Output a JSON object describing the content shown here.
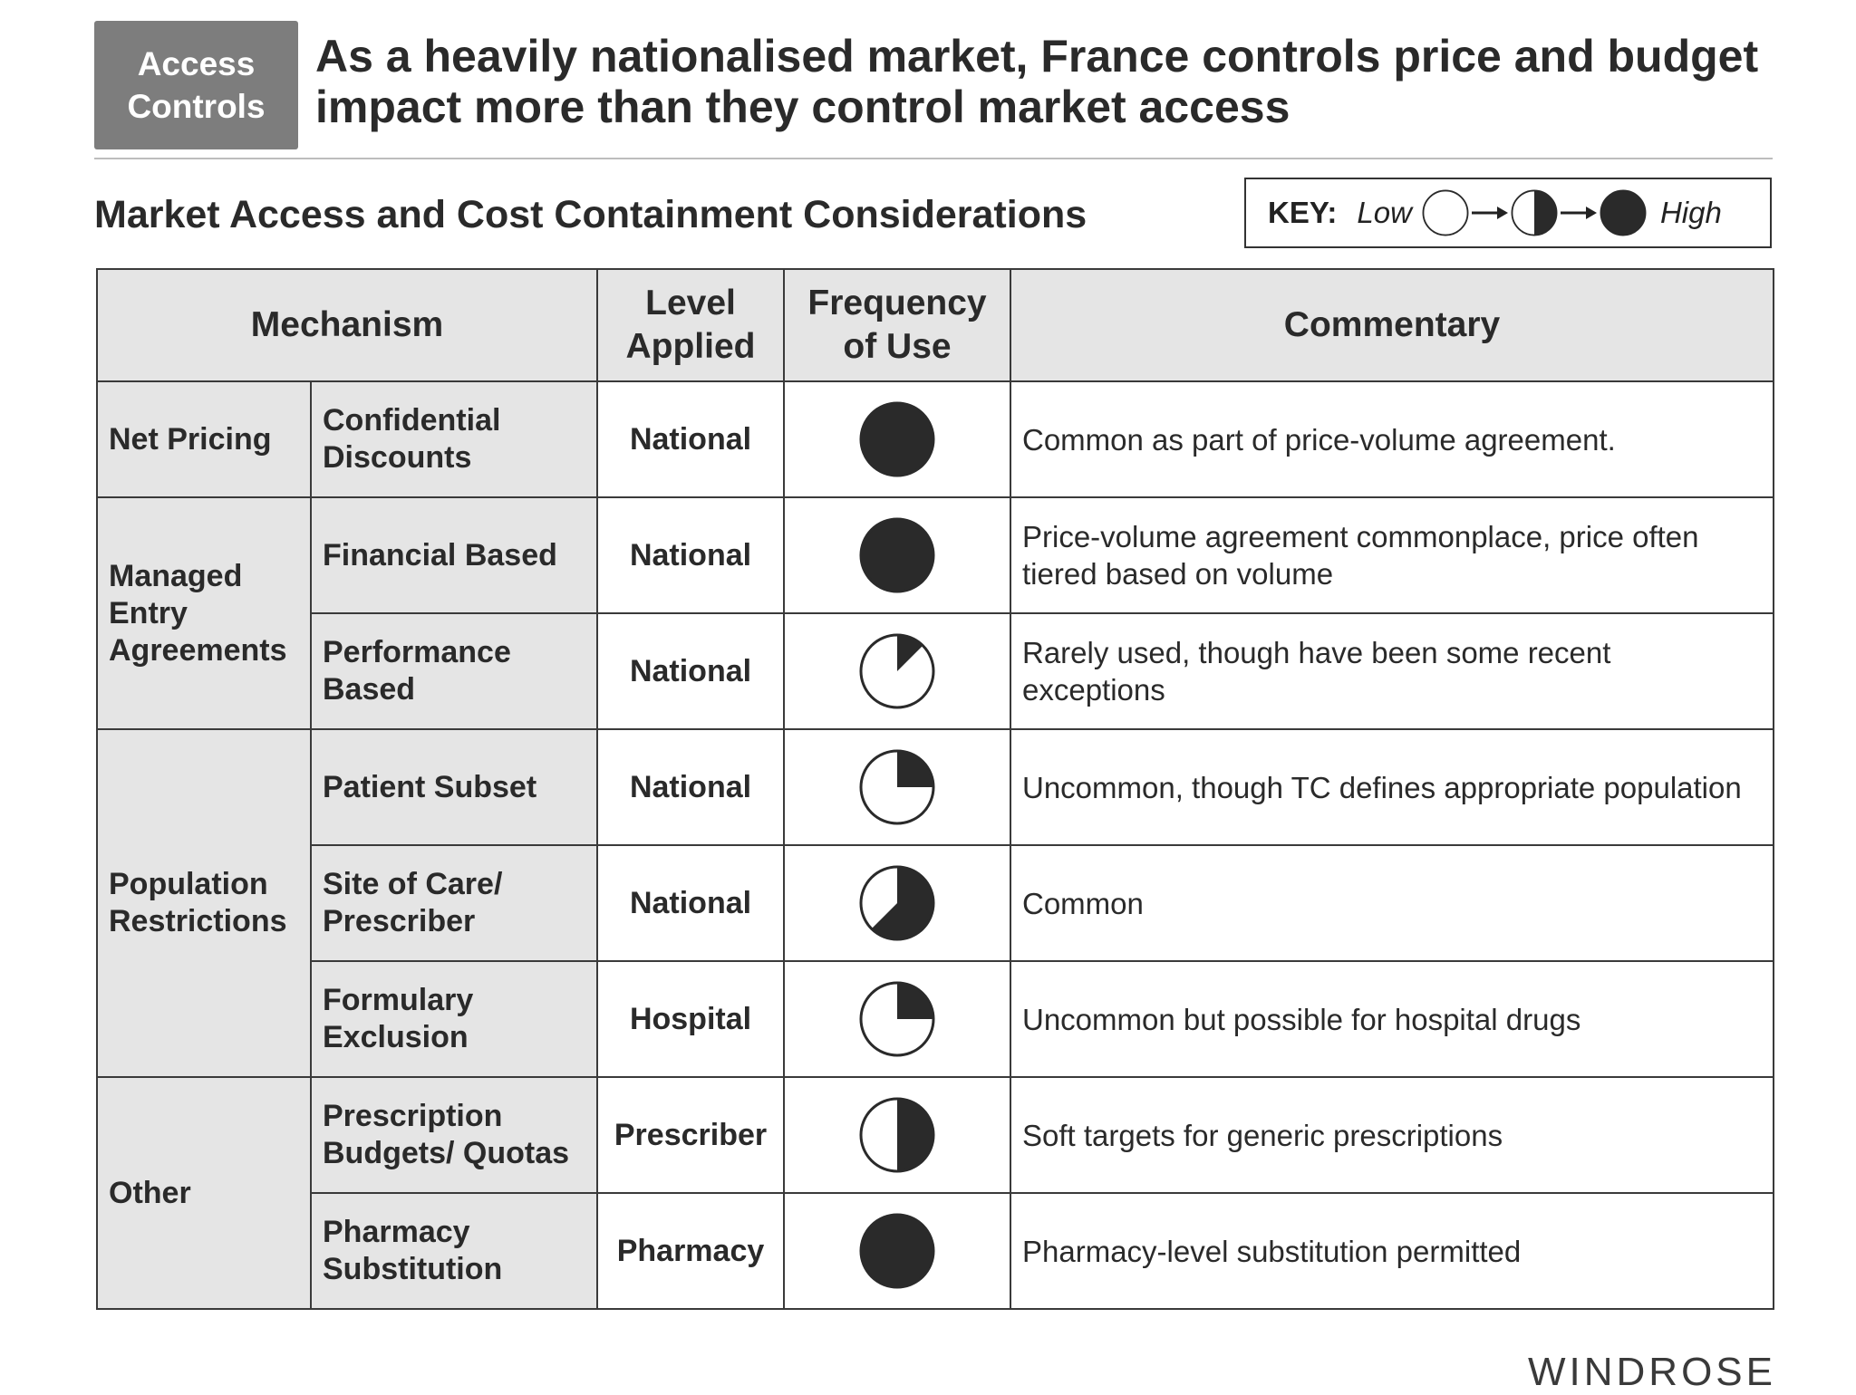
{
  "tag": {
    "line1": "Access",
    "line2": "Controls"
  },
  "headline": "As a heavily nationalised market, France controls price and budget impact more than they control market access",
  "subtitle": "Market Access and Cost Containment Considerations",
  "key": {
    "label": "KEY:",
    "low": "Low",
    "high": "High",
    "levels": [
      0,
      0.5,
      1
    ]
  },
  "table": {
    "headers": {
      "mechanism": "Mechanism",
      "level": "Level Applied",
      "frequency": "Frequency of Use",
      "commentary": "Commentary"
    },
    "rows": [
      {
        "category": "Net Pricing",
        "mechanism": "Confidential Discounts",
        "level": "National",
        "frequency": 1.0,
        "commentary": "Common as part of price-volume agreement."
      },
      {
        "category": "Managed Entry Agreements",
        "mechanism": "Financial Based",
        "level": "National",
        "frequency": 1.0,
        "commentary": "Price-volume agreement commonplace, price often tiered based on volume"
      },
      {
        "category": "",
        "mechanism": "Performance Based",
        "level": "National",
        "frequency": 0.125,
        "commentary": "Rarely used,  though have been some recent exceptions"
      },
      {
        "category": "Population Restrictions",
        "mechanism": "Patient Subset",
        "level": "National",
        "frequency": 0.25,
        "commentary": "Uncommon, though TC defines appropriate population"
      },
      {
        "category": "",
        "mechanism": "Site of Care/ Prescriber",
        "level": "National",
        "frequency": 0.625,
        "commentary": "Common"
      },
      {
        "category": "",
        "mechanism": "Formulary Exclusion",
        "level": "Hospital",
        "frequency": 0.25,
        "commentary": "Uncommon but possible for hospital drugs"
      },
      {
        "category": "Other",
        "mechanism": "Prescription Budgets/ Quotas",
        "level": "Prescriber",
        "frequency": 0.5,
        "commentary": "Soft targets for generic prescriptions"
      },
      {
        "category": "",
        "mechanism": "Pharmacy Substitution",
        "level": "Pharmacy",
        "frequency": 1.0,
        "commentary": "Pharmacy-level substitution permitted"
      }
    ]
  },
  "brand": "WINDROSE",
  "colors": {
    "tag_bg": "#7d7d7d",
    "header_bg": "#e5e5e5",
    "fill": "#2a2a2a",
    "border": "#3a3a3a"
  }
}
